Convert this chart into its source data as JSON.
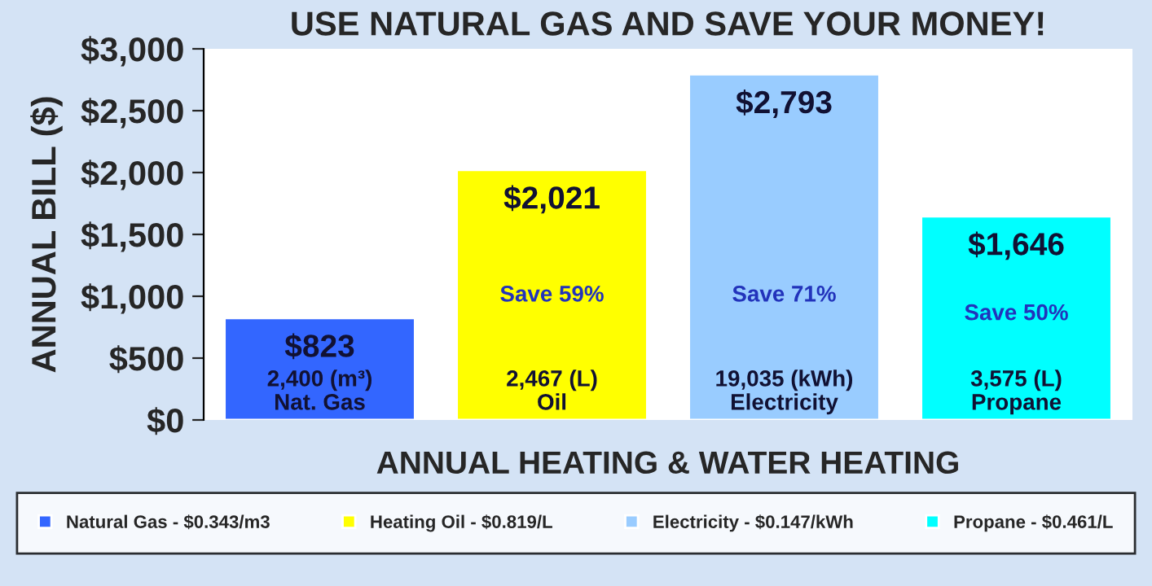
{
  "chart_data": {
    "type": "bar",
    "title": "USE NATURAL GAS AND SAVE YOUR MONEY!",
    "xlabel": "ANNUAL HEATING & WATER HEATING",
    "ylabel": "ANNUAL BILL ($)",
    "categories": [
      "2,400 (m³)\nNat. Gas",
      "2,467 (L)\nOil",
      "19,035 (kWh)\nElectricity",
      "3,575 (L)\nPropane"
    ],
    "series": [
      {
        "name": "Natural Gas - $0.343/m3",
        "color": "#3366ff",
        "values": [
          823,
          null,
          null,
          null
        ],
        "value_labels": [
          "$823",
          null,
          null,
          null
        ]
      },
      {
        "name": "Heating Oil - $0.819/L",
        "color": "#ffff00",
        "values": [
          null,
          2021,
          null,
          null
        ],
        "value_labels": [
          null,
          "$2,021",
          null,
          null
        ]
      },
      {
        "name": "Electricity - $0.147/kWh",
        "color": "#99ccff",
        "values": [
          null,
          null,
          2793,
          null
        ],
        "value_labels": [
          null,
          null,
          "$2,793",
          null
        ]
      },
      {
        "name": "Propane - $0.461/L",
        "color": "#00ffff",
        "values": [
          null,
          null,
          null,
          1646
        ],
        "value_labels": [
          null,
          null,
          null,
          "$1,646"
        ]
      }
    ],
    "annotations": [
      "Save 59%",
      "Save 71%",
      "Save 50%"
    ],
    "ylim": [
      0,
      3000
    ],
    "yticks": [
      {
        "value": 0,
        "label": "$0"
      },
      {
        "value": 500,
        "label": "$500"
      },
      {
        "value": 1000,
        "label": "$1,000"
      },
      {
        "value": 1500,
        "label": "$1,500"
      },
      {
        "value": 2000,
        "label": "$2,000"
      },
      {
        "value": 2500,
        "label": "$2,500"
      },
      {
        "value": 3000,
        "label": "$3,000"
      }
    ],
    "tick_labels": "y",
    "grid": false,
    "legend": "bottom"
  }
}
